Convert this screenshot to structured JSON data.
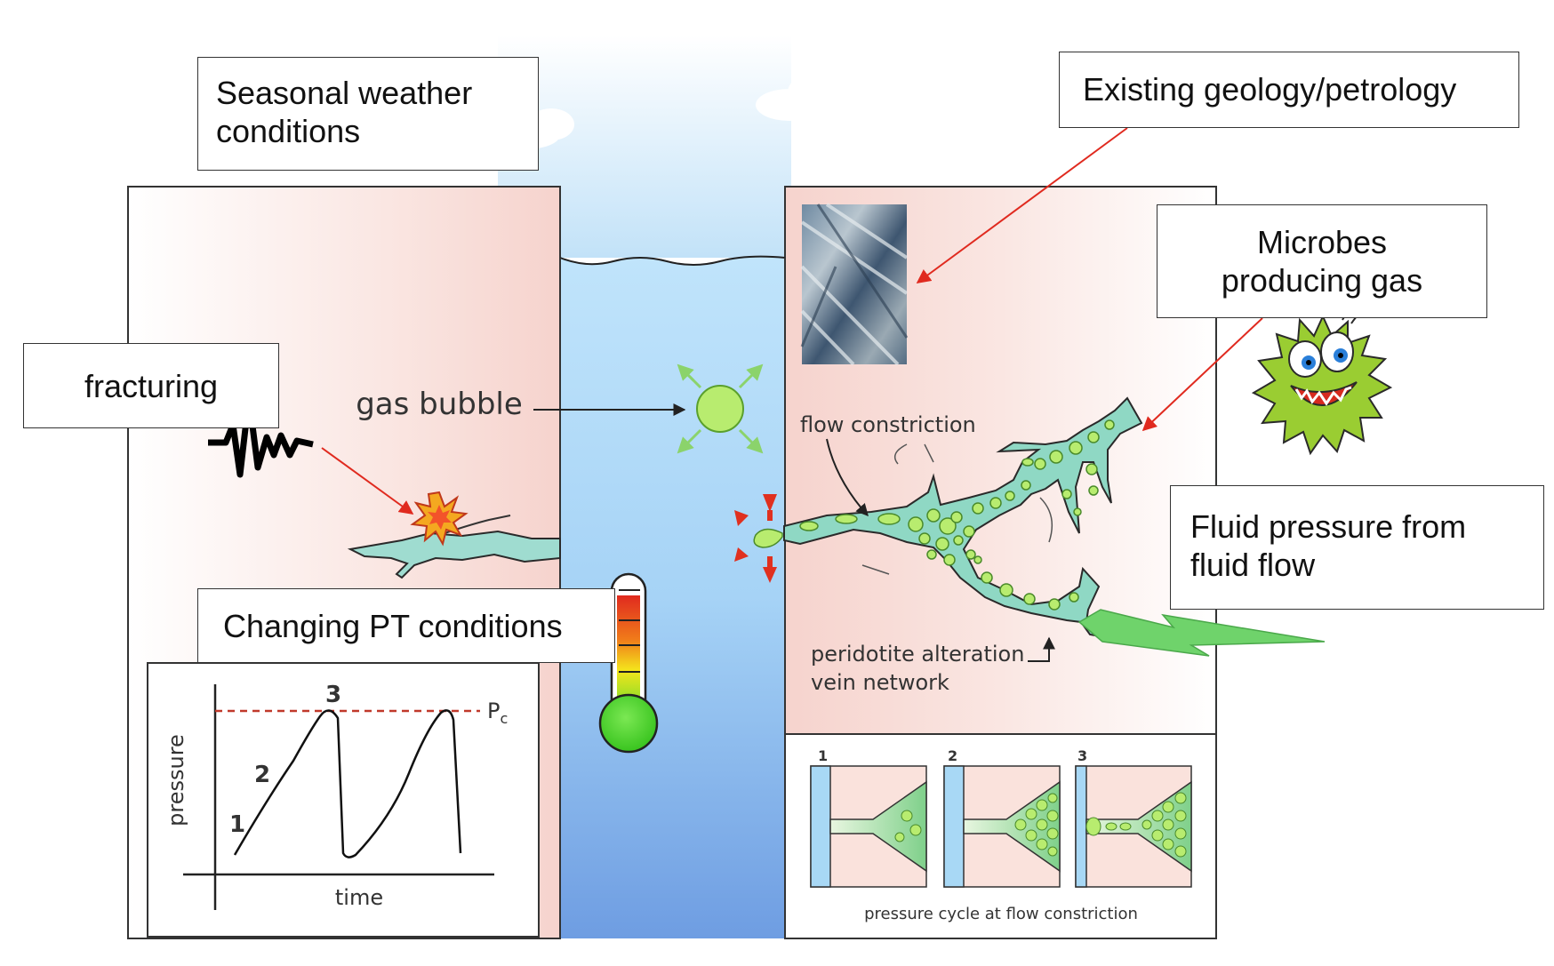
{
  "labels": {
    "weather": [
      "Seasonal weather",
      "conditions"
    ],
    "geology": "Existing geology/petrology",
    "microbes": [
      "Microbes",
      "producing gas"
    ],
    "fracturing": "fracturing",
    "fluid_pressure": [
      "Fluid pressure from",
      "fluid flow"
    ],
    "pt_conditions": "Changing PT conditions"
  },
  "diagram_text": {
    "gas_bubble": "gas bubble",
    "flow_constriction": "flow constriction",
    "vein_network": [
      "peridotite alteration",
      "vein network"
    ],
    "pressure_axis": "pressure",
    "time_axis": "time",
    "pc_label": "P",
    "pc_subscript": "c",
    "curve_steps": [
      "1",
      "2",
      "3"
    ],
    "panel_numbers": [
      "1",
      "2",
      "3"
    ],
    "cycle_caption": "pressure cycle at flow constriction"
  },
  "colors": {
    "arrow_red": "#e02a1f",
    "water_top": "#bfe3fb",
    "water_bottom": "#6f9fe2",
    "rock": "#f8dcd6",
    "vein": "#8fd8c4",
    "bubble": "#b8ec6f",
    "microbe": "#9acd32",
    "thermo_red": "#e53122",
    "thermo_green": "#4cd630"
  },
  "icons": [
    "seismogram-icon",
    "explosion-icon",
    "microbe-icon",
    "thermometer-icon",
    "lightning-bolt-icon",
    "rock-sample-image"
  ]
}
